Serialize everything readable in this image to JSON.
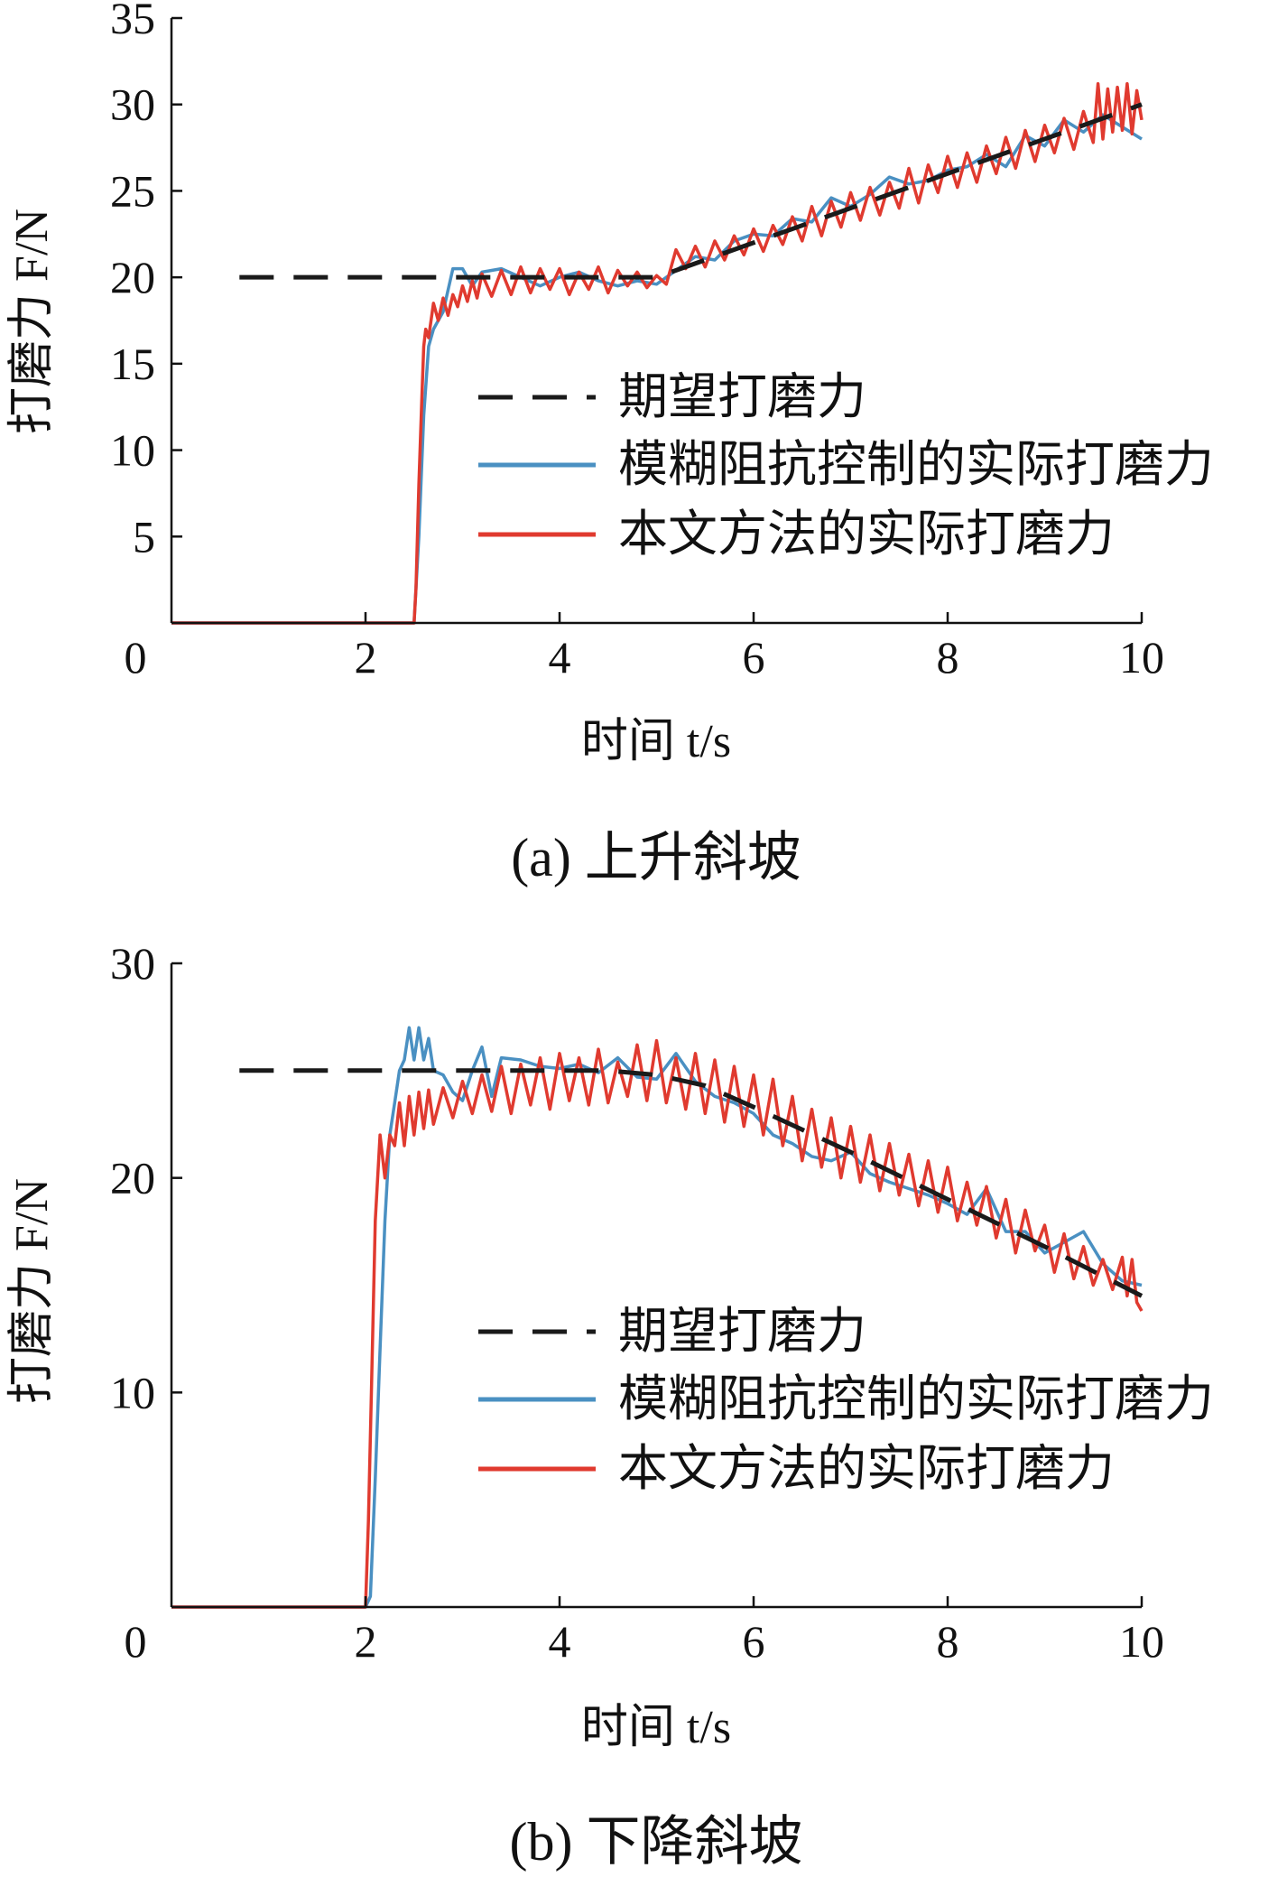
{
  "chart_data": [
    {
      "type": "line",
      "caption": "(a) 上升斜坡",
      "xlabel": "时间 t/s",
      "ylabel": "打磨力 F/N",
      "xlim": [
        0,
        10
      ],
      "ylim": [
        0,
        35
      ],
      "x_ticks": [
        "0",
        "2",
        "4",
        "6",
        "8",
        "10"
      ],
      "y_ticks": [
        "5",
        "10",
        "15",
        "20",
        "25",
        "30",
        "35"
      ],
      "legend": {
        "position": "center-right",
        "entries": [
          "期望打磨力",
          "模糊阻抗控制的实际打磨力",
          "本文方法的实际打磨力"
        ]
      },
      "series": [
        {
          "name": "期望打磨力",
          "color": "#1a1a1a",
          "style": "dashed",
          "x": [
            0.7,
            5.0,
            10.0
          ],
          "y": [
            20,
            20,
            30
          ]
        },
        {
          "name": "模糊阻抗控制的实际打磨力",
          "color": "#4a90c2",
          "style": "solid",
          "x": [
            0,
            2.5,
            2.55,
            2.6,
            2.65,
            2.7,
            2.75,
            2.8,
            2.9,
            3.0,
            3.1,
            3.2,
            3.4,
            3.6,
            3.8,
            4.0,
            4.2,
            4.4,
            4.6,
            4.8,
            5.0,
            5.2,
            5.4,
            5.6,
            5.8,
            6.0,
            6.2,
            6.4,
            6.6,
            6.8,
            7.0,
            7.2,
            7.4,
            7.6,
            7.8,
            8.0,
            8.2,
            8.4,
            8.6,
            8.8,
            9.0,
            9.2,
            9.4,
            9.6,
            9.8,
            10.0
          ],
          "y": [
            0,
            0,
            5,
            12,
            16,
            17,
            17.5,
            18,
            20.5,
            20.5,
            19.5,
            20.3,
            20.5,
            20,
            19.5,
            20,
            20.3,
            19.8,
            19.5,
            19.8,
            19.6,
            20.4,
            21.2,
            21,
            22.1,
            22.5,
            22.4,
            23.4,
            23.2,
            24.6,
            24.1,
            24.8,
            25.8,
            25.4,
            25.6,
            26.2,
            26.4,
            27.1,
            26.4,
            28.2,
            27.6,
            29.1,
            28.4,
            29.4,
            28.7,
            28
          ]
        },
        {
          "name": "本文方法的实际打磨力",
          "color": "#e03a2f",
          "style": "solid",
          "x": [
            0,
            2.5,
            2.52,
            2.55,
            2.58,
            2.6,
            2.62,
            2.65,
            2.7,
            2.75,
            2.8,
            2.85,
            2.9,
            2.95,
            3.0,
            3.05,
            3.1,
            3.15,
            3.2,
            3.3,
            3.4,
            3.5,
            3.6,
            3.7,
            3.8,
            3.9,
            4.0,
            4.1,
            4.2,
            4.3,
            4.4,
            4.5,
            4.6,
            4.7,
            4.8,
            4.9,
            5.0,
            5.1,
            5.2,
            5.3,
            5.4,
            5.5,
            5.6,
            5.7,
            5.8,
            5.9,
            6.0,
            6.1,
            6.2,
            6.3,
            6.4,
            6.5,
            6.6,
            6.7,
            6.8,
            6.9,
            7.0,
            7.1,
            7.2,
            7.3,
            7.4,
            7.5,
            7.6,
            7.7,
            7.8,
            7.9,
            8.0,
            8.1,
            8.2,
            8.3,
            8.4,
            8.5,
            8.6,
            8.7,
            8.8,
            8.9,
            9.0,
            9.1,
            9.2,
            9.3,
            9.4,
            9.5,
            9.55,
            9.6,
            9.65,
            9.7,
            9.75,
            9.8,
            9.85,
            9.9,
            9.95,
            10.0
          ],
          "y": [
            0,
            0,
            2,
            8,
            13,
            16,
            17,
            16.5,
            18.5,
            17.5,
            18.8,
            17.8,
            19,
            18.3,
            19.5,
            18.6,
            19.8,
            18.8,
            20.2,
            18.9,
            20.4,
            19.0,
            20.6,
            19.1,
            20.5,
            19.3,
            20.5,
            19.0,
            20.3,
            19.3,
            20.6,
            19.1,
            20.4,
            19.5,
            20.3,
            19.4,
            20.1,
            19.6,
            21.6,
            20.5,
            21.8,
            20.6,
            22.1,
            21.0,
            22.4,
            21.3,
            22.8,
            21.5,
            23.0,
            21.9,
            23.5,
            22.1,
            24.1,
            22.4,
            24.4,
            22.9,
            24.9,
            23.3,
            25.2,
            23.6,
            25.5,
            24.0,
            26.3,
            24.3,
            26.5,
            24.9,
            27.0,
            25.2,
            27.2,
            25.5,
            27.6,
            26.0,
            28.1,
            26.3,
            28.5,
            26.7,
            28.8,
            27.2,
            29.2,
            27.4,
            29.6,
            27.8,
            31.2,
            28.0,
            30.9,
            28.4,
            31.0,
            28.5,
            31.2,
            28.3,
            30.8,
            29.1
          ]
        }
      ]
    },
    {
      "type": "line",
      "caption": "(b) 下降斜坡",
      "xlabel": "时间 t/s",
      "ylabel": "打磨力 F/N",
      "xlim": [
        0,
        10
      ],
      "ylim": [
        0,
        30
      ],
      "x_ticks": [
        "0",
        "2",
        "4",
        "6",
        "8",
        "10"
      ],
      "y_ticks": [
        "10",
        "20",
        "30"
      ],
      "legend": {
        "position": "center-right",
        "entries": [
          "期望打磨力",
          "模糊阻抗控制的实际打磨力",
          "本文方法的实际打磨力"
        ]
      },
      "series": [
        {
          "name": "期望打磨力",
          "color": "#1a1a1a",
          "style": "dashed",
          "x": [
            0.7,
            4.5,
            5.0,
            5.5,
            6.0,
            7.0,
            8.0,
            9.0,
            10.0
          ],
          "y": [
            25,
            25,
            24.8,
            24.3,
            23.3,
            21.2,
            19.0,
            16.8,
            14.5
          ]
        },
        {
          "name": "模糊阻抗控制的实际打磨力",
          "color": "#4a90c2",
          "style": "solid",
          "x": [
            0,
            2.0,
            2.05,
            2.1,
            2.15,
            2.2,
            2.25,
            2.3,
            2.35,
            2.4,
            2.45,
            2.5,
            2.55,
            2.6,
            2.65,
            2.7,
            2.8,
            2.9,
            3.0,
            3.1,
            3.2,
            3.3,
            3.4,
            3.6,
            3.8,
            4.0,
            4.2,
            4.4,
            4.6,
            4.8,
            5.0,
            5.2,
            5.4,
            5.6,
            5.8,
            6.0,
            6.2,
            6.4,
            6.6,
            6.8,
            7.0,
            7.2,
            7.4,
            7.6,
            7.8,
            8.0,
            8.2,
            8.4,
            8.6,
            8.8,
            9.0,
            9.2,
            9.4,
            9.6,
            9.8,
            10.0
          ],
          "y": [
            0,
            0,
            0.5,
            6,
            12,
            18,
            22,
            23.5,
            25,
            25.5,
            27,
            25.5,
            27,
            25.5,
            26.5,
            25.0,
            24.8,
            24.0,
            23.6,
            25.0,
            26.1,
            23.8,
            25.6,
            25.5,
            25.2,
            25.1,
            25.3,
            24.9,
            25.6,
            24.7,
            24.6,
            25.8,
            24.5,
            23.8,
            23.5,
            23.0,
            22.0,
            21.6,
            21.0,
            20.8,
            21.2,
            20.2,
            19.8,
            19.5,
            19.2,
            18.8,
            18.3,
            19.5,
            17.5,
            17.5,
            16.5,
            17.0,
            17.5,
            16.0,
            15.2,
            15.0
          ]
        },
        {
          "name": "本文方法的实际打磨力",
          "color": "#e03a2f",
          "style": "solid",
          "x": [
            0,
            2.0,
            2.03,
            2.06,
            2.1,
            2.15,
            2.2,
            2.25,
            2.3,
            2.35,
            2.4,
            2.45,
            2.5,
            2.55,
            2.6,
            2.65,
            2.7,
            2.8,
            2.9,
            3.0,
            3.1,
            3.2,
            3.3,
            3.4,
            3.5,
            3.6,
            3.7,
            3.8,
            3.9,
            4.0,
            4.1,
            4.2,
            4.3,
            4.4,
            4.5,
            4.6,
            4.7,
            4.8,
            4.9,
            5.0,
            5.1,
            5.2,
            5.3,
            5.4,
            5.5,
            5.6,
            5.7,
            5.8,
            5.9,
            6.0,
            6.1,
            6.2,
            6.3,
            6.4,
            6.5,
            6.6,
            6.7,
            6.8,
            6.9,
            7.0,
            7.1,
            7.2,
            7.3,
            7.4,
            7.5,
            7.6,
            7.7,
            7.8,
            7.9,
            8.0,
            8.1,
            8.2,
            8.3,
            8.4,
            8.5,
            8.6,
            8.7,
            8.8,
            8.9,
            9.0,
            9.1,
            9.2,
            9.3,
            9.4,
            9.5,
            9.6,
            9.7,
            9.8,
            9.85,
            9.9,
            9.95,
            10.0
          ],
          "y": [
            0,
            0,
            4,
            10,
            18,
            22,
            20,
            22,
            21.5,
            23.5,
            21.5,
            23.8,
            22.0,
            24.0,
            22.3,
            24.1,
            22.5,
            24.2,
            22.8,
            24.5,
            23.0,
            24.8,
            23.1,
            25.2,
            23.0,
            25.3,
            23.4,
            25.6,
            23.2,
            25.8,
            23.6,
            25.6,
            23.4,
            26.0,
            23.5,
            25.4,
            23.8,
            26.2,
            23.6,
            26.4,
            23.5,
            25.6,
            23.2,
            25.8,
            23.0,
            25.5,
            22.6,
            25.2,
            22.4,
            24.8,
            22.0,
            24.6,
            21.5,
            23.8,
            20.8,
            23.2,
            20.5,
            22.8,
            20.0,
            22.4,
            19.8,
            22.0,
            19.4,
            21.6,
            19.2,
            21.1,
            18.7,
            20.8,
            18.4,
            20.5,
            18.0,
            19.8,
            17.8,
            19.6,
            17.2,
            19.0,
            16.5,
            18.5,
            16.6,
            17.8,
            15.6,
            17.4,
            15.3,
            16.8,
            15.0,
            16.2,
            14.8,
            16.3,
            14.5,
            16.2,
            14.2,
            13.8
          ]
        }
      ]
    }
  ]
}
